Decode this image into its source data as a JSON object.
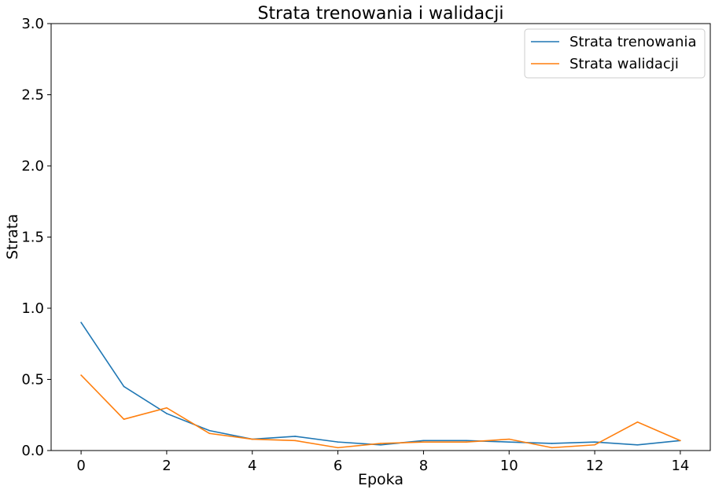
{
  "chart_data": {
    "type": "line",
    "title": "Strata trenowania i walidacji",
    "xlabel": "Epoka",
    "ylabel": "Strata",
    "x": [
      0,
      1,
      2,
      3,
      4,
      5,
      6,
      7,
      8,
      9,
      10,
      11,
      12,
      13,
      14
    ],
    "xlim": [
      -0.7,
      14.7
    ],
    "ylim": [
      0,
      3.0
    ],
    "xticks": [
      0,
      2,
      4,
      6,
      8,
      10,
      12,
      14
    ],
    "yticks": [
      0.0,
      0.5,
      1.0,
      1.5,
      2.0,
      2.5,
      3.0
    ],
    "xtick_labels": [
      "0",
      "2",
      "4",
      "6",
      "8",
      "10",
      "12",
      "14"
    ],
    "ytick_labels": [
      "0.0",
      "0.5",
      "1.0",
      "1.5",
      "2.0",
      "2.5",
      "3.0"
    ],
    "grid": false,
    "legend_position": "top-right",
    "series": [
      {
        "name": "Strata trenowania",
        "color": "#1f77b4",
        "values": [
          0.9,
          0.45,
          0.26,
          0.14,
          0.08,
          0.1,
          0.06,
          0.04,
          0.07,
          0.07,
          0.06,
          0.05,
          0.06,
          0.04,
          0.07
        ]
      },
      {
        "name": "Strata walidacji",
        "color": "#ff7f0e",
        "values": [
          0.53,
          0.22,
          0.3,
          0.12,
          0.08,
          0.07,
          0.02,
          0.05,
          0.06,
          0.06,
          0.08,
          0.02,
          0.04,
          0.2,
          0.07
        ]
      }
    ]
  }
}
